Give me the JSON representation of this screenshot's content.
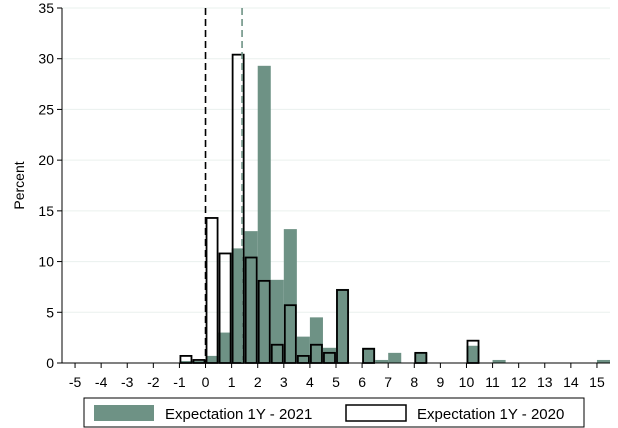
{
  "chart_data": {
    "type": "bar",
    "ylabel": "Percent",
    "xlabel": "",
    "title": "",
    "xlim": [
      -5.5,
      15.5
    ],
    "ylim": [
      0,
      35
    ],
    "x_ticks": [
      -5,
      -4,
      -3,
      -2,
      -1,
      0,
      1,
      2,
      3,
      4,
      5,
      6,
      7,
      8,
      9,
      10,
      11,
      12,
      13,
      14,
      15
    ],
    "y_ticks": [
      0,
      5,
      10,
      15,
      20,
      25,
      30,
      35
    ],
    "grid": true,
    "legend_position": "bottom",
    "bin_width": 0.5,
    "series": [
      {
        "name": "Expectation 1Y - 2021",
        "style": "filled",
        "color": "#6e9285",
        "bins": [
          {
            "x": -1.0,
            "y": 0.2
          },
          {
            "x": -0.5,
            "y": 0.2
          },
          {
            "x": 0.0,
            "y": 0.7
          },
          {
            "x": 0.5,
            "y": 3.0
          },
          {
            "x": 1.0,
            "y": 11.3
          },
          {
            "x": 1.5,
            "y": 13.0
          },
          {
            "x": 2.0,
            "y": 29.3
          },
          {
            "x": 2.5,
            "y": 8.2
          },
          {
            "x": 3.0,
            "y": 13.2
          },
          {
            "x": 3.5,
            "y": 2.6
          },
          {
            "x": 4.0,
            "y": 4.5
          },
          {
            "x": 4.5,
            "y": 1.5
          },
          {
            "x": 5.0,
            "y": 7.3
          },
          {
            "x": 6.0,
            "y": 1.5
          },
          {
            "x": 6.5,
            "y": 0.3
          },
          {
            "x": 7.0,
            "y": 1.0
          },
          {
            "x": 8.0,
            "y": 1.0
          },
          {
            "x": 10.0,
            "y": 1.7
          },
          {
            "x": 11.0,
            "y": 0.3
          },
          {
            "x": 15.0,
            "y": 0.3
          }
        ]
      },
      {
        "name": "Expectation 1Y - 2020",
        "style": "outline",
        "color": "#000000",
        "bins": [
          {
            "x": -1.0,
            "y": 0.7
          },
          {
            "x": -0.5,
            "y": 0.3
          },
          {
            "x": 0.0,
            "y": 14.3
          },
          {
            "x": 0.5,
            "y": 10.8
          },
          {
            "x": 1.0,
            "y": 30.4
          },
          {
            "x": 1.5,
            "y": 10.4
          },
          {
            "x": 2.0,
            "y": 8.1
          },
          {
            "x": 2.5,
            "y": 1.8
          },
          {
            "x": 3.0,
            "y": 5.7
          },
          {
            "x": 3.5,
            "y": 0.7
          },
          {
            "x": 4.0,
            "y": 1.8
          },
          {
            "x": 4.5,
            "y": 1.0
          },
          {
            "x": 5.0,
            "y": 7.2
          },
          {
            "x": 6.0,
            "y": 1.4
          },
          {
            "x": 8.0,
            "y": 1.0
          },
          {
            "x": 10.0,
            "y": 2.2
          }
        ]
      }
    ],
    "reference_lines": [
      {
        "x": 0,
        "color": "#000000",
        "dash": "dashed"
      },
      {
        "x": 1.4,
        "color": "#6e9285",
        "dash": "dashed"
      }
    ]
  }
}
